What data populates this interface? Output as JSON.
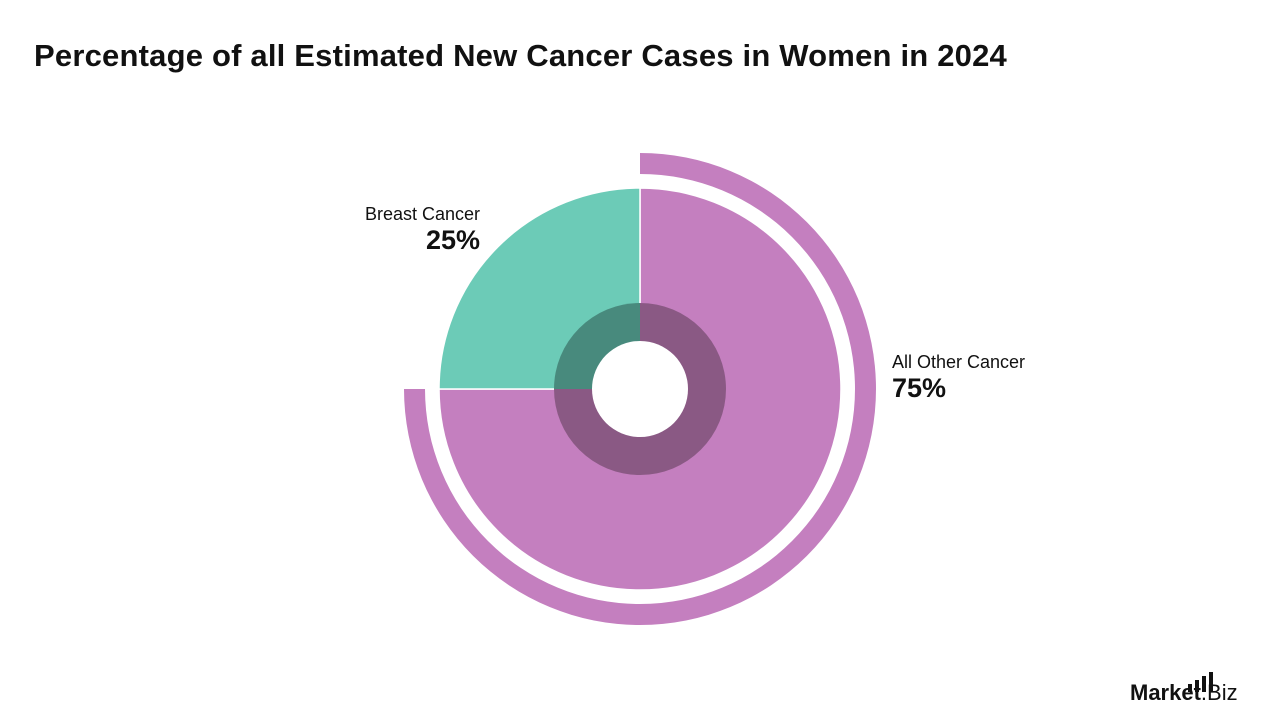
{
  "title": "Percentage of all Estimated New Cancer Cases in Women in 2024",
  "logo": {
    "brand": "Market",
    "suffix": ".Biz"
  },
  "chart_data": {
    "type": "pie",
    "title": "Percentage of all Estimated New Cancer Cases in Women in 2024",
    "slices": [
      {
        "label": "Breast Cancer",
        "value": 25,
        "display": "25%",
        "color": "#6ccbb7",
        "inner_color": "#488a7d"
      },
      {
        "label": "All Other Cancer",
        "value": 75,
        "display": "75%",
        "color": "#c47fbf",
        "inner_color": "#8a5984"
      }
    ],
    "outer_arc": {
      "label": "All Other Cancer",
      "value": 75,
      "color": "#c47fbf"
    }
  }
}
